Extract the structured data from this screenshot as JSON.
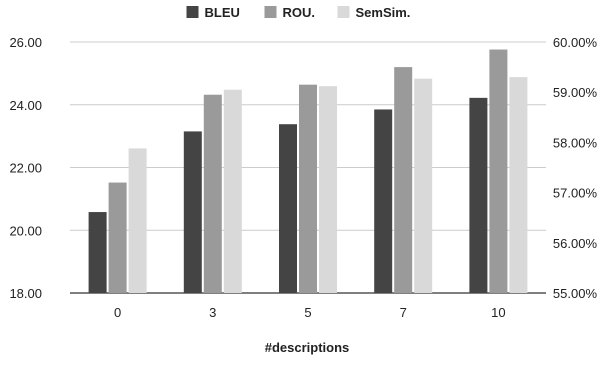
{
  "chart_data": {
    "type": "bar",
    "categories": [
      "0",
      "3",
      "5",
      "7",
      "10"
    ],
    "xlabel": "#descriptions",
    "y_left": {
      "ticks": [
        "18.00",
        "20.00",
        "22.00",
        "24.00",
        "26.00"
      ],
      "ylim": [
        18,
        26
      ]
    },
    "y_right": {
      "ticks": [
        "55.00%",
        "56.00%",
        "57.00%",
        "58.00%",
        "59.00%",
        "60.00%"
      ],
      "ylim": [
        55,
        60
      ]
    },
    "grid": true,
    "legend_position": "top-center",
    "series": [
      {
        "name": "BLEU",
        "axis": "left",
        "color": "#444444",
        "values": [
          20.58,
          23.15,
          23.38,
          23.85,
          24.22
        ]
      },
      {
        "name": "ROU.",
        "axis": "right",
        "color": "#9a9a9a",
        "values": [
          57.2,
          58.95,
          59.15,
          59.5,
          59.85
        ]
      },
      {
        "name": "SemSim.",
        "axis": "right",
        "color": "#d9d9d9",
        "values": [
          57.88,
          59.05,
          59.12,
          59.27,
          59.3
        ]
      }
    ]
  }
}
